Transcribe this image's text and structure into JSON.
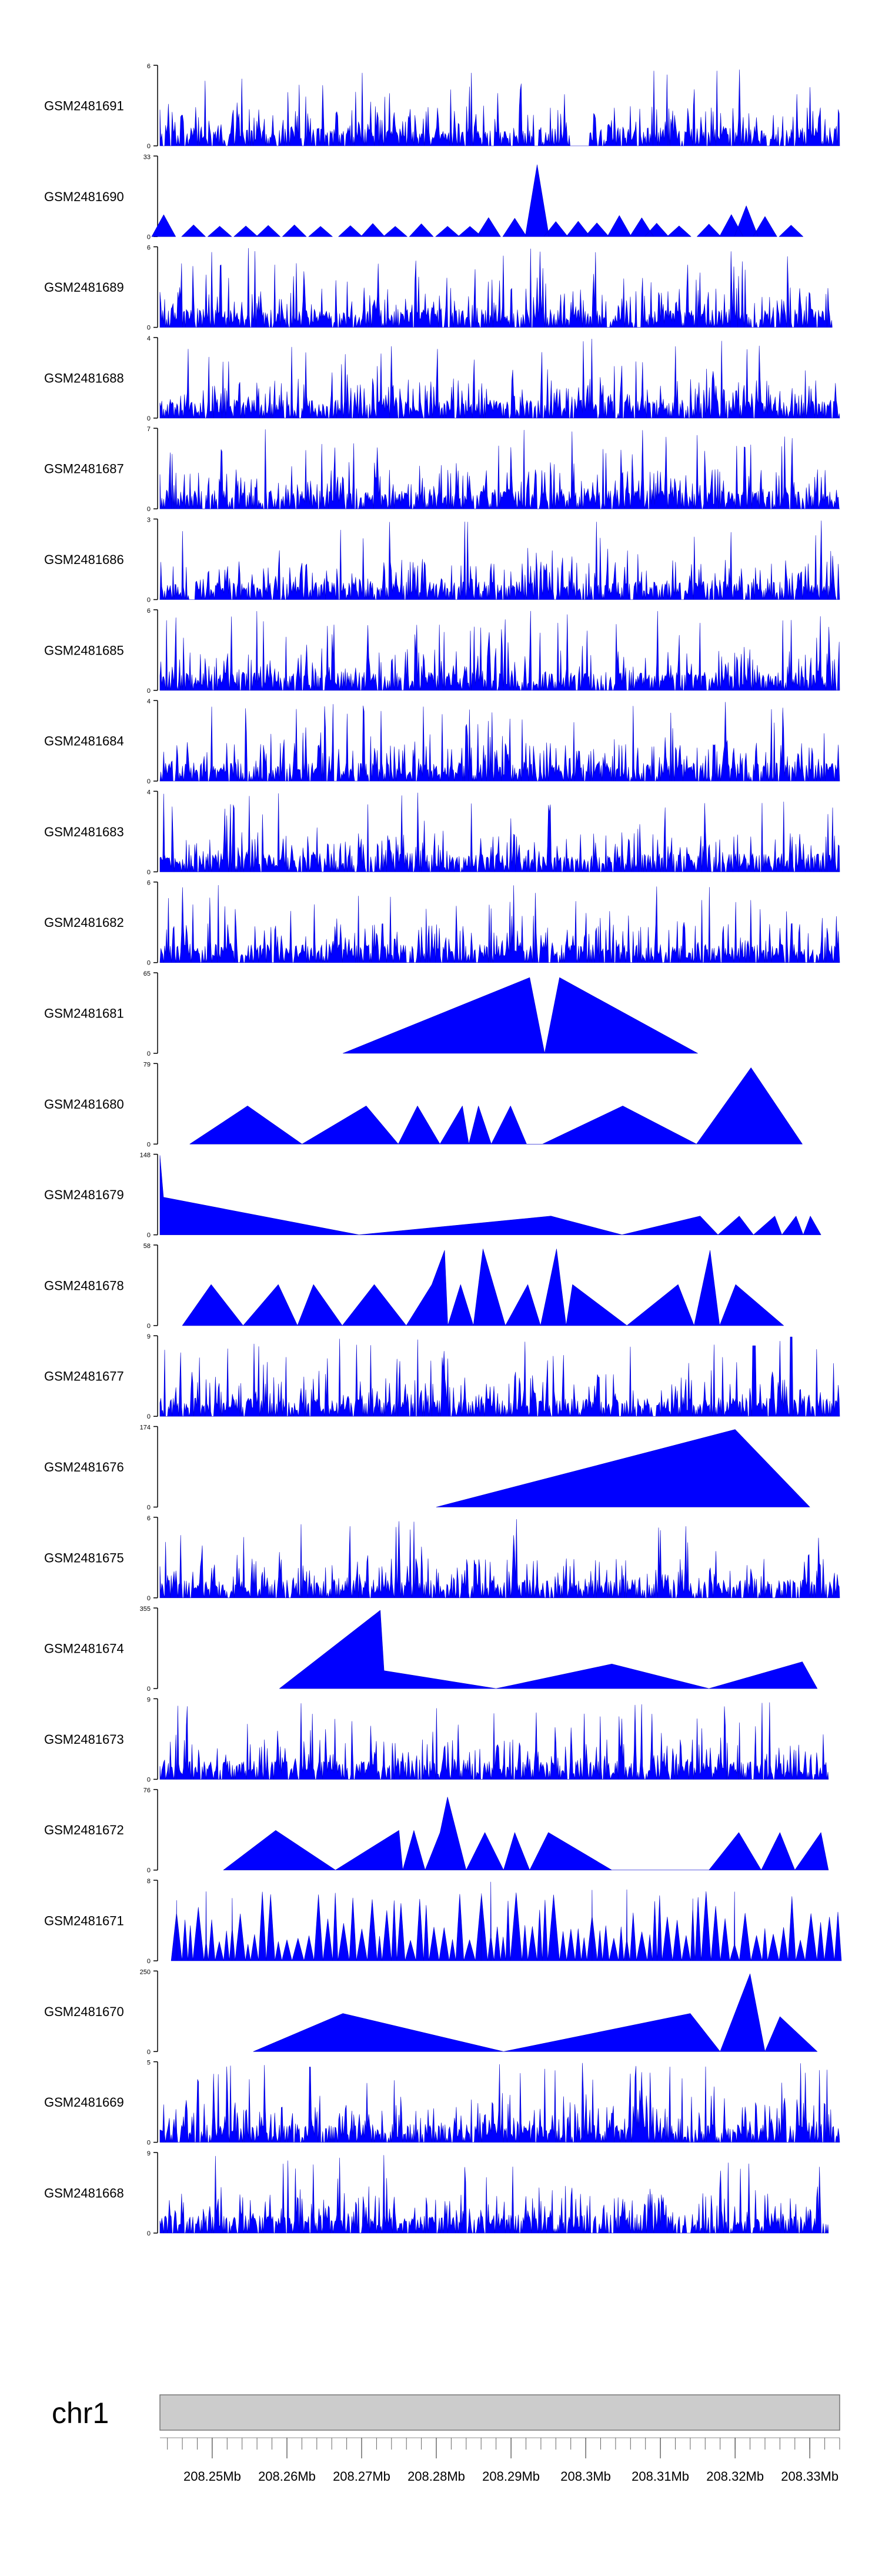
{
  "chart_data": {
    "type": "area",
    "title": "",
    "xlabel": "",
    "ylabel": "",
    "fill_color": "#0000ff",
    "stroke_color": "#0000cc",
    "axis_color": "#000000",
    "x_range_mb": [
      208.243,
      208.334
    ],
    "tracks": [
      {
        "name": "GSM2481691",
        "ymax": 6,
        "pattern": "dense",
        "seed": 11,
        "xmin": 208.243,
        "xmax": 208.334,
        "gaps": [
          [
            208.2978,
            208.3005
          ]
        ]
      },
      {
        "name": "GSM2481690",
        "ymax": 33,
        "pattern": "sparse",
        "seed": 12,
        "peaks": [
          [
            208.2435,
            10
          ],
          [
            208.2475,
            5
          ],
          [
            208.251,
            5
          ],
          [
            208.2545,
            5
          ],
          [
            208.2575,
            5
          ],
          [
            208.261,
            5
          ],
          [
            208.2645,
            5
          ],
          [
            208.2685,
            5
          ],
          [
            208.2715,
            6
          ],
          [
            208.2745,
            5
          ],
          [
            208.278,
            6
          ],
          [
            208.2815,
            5
          ],
          [
            208.2845,
            5
          ],
          [
            208.287,
            9
          ],
          [
            208.2905,
            8
          ],
          [
            208.2935,
            33
          ],
          [
            208.296,
            7
          ],
          [
            208.299,
            7
          ],
          [
            208.3015,
            6
          ],
          [
            208.3045,
            10
          ],
          [
            208.3075,
            9
          ],
          [
            208.3095,
            6
          ],
          [
            208.3125,
            5
          ],
          [
            208.3165,
            6
          ],
          [
            208.3195,
            10
          ],
          [
            208.3215,
            13
          ],
          [
            208.324,
            9
          ],
          [
            208.3275,
            5
          ]
        ],
        "pw": 0.0016,
        "xmax": 208.3305
      },
      {
        "name": "GSM2481689",
        "ymax": 6,
        "pattern": "dense",
        "seed": 13,
        "xmin": 208.243,
        "xmax": 208.333,
        "gaps": []
      },
      {
        "name": "GSM2481688",
        "ymax": 4,
        "pattern": "dense",
        "seed": 14,
        "xmin": 208.243,
        "xmax": 208.334,
        "gaps": []
      },
      {
        "name": "GSM2481687",
        "ymax": 7,
        "pattern": "dense",
        "seed": 15,
        "xmin": 208.243,
        "xmax": 208.334,
        "gaps": []
      },
      {
        "name": "GSM2481686",
        "ymax": 3,
        "pattern": "dense",
        "seed": 16,
        "xmin": 208.243,
        "xmax": 208.334,
        "gaps": []
      },
      {
        "name": "GSM2481685",
        "ymax": 6,
        "pattern": "dense",
        "seed": 17,
        "xmin": 208.243,
        "xmax": 208.334,
        "gaps": []
      },
      {
        "name": "GSM2481684",
        "ymax": 4,
        "pattern": "dense",
        "seed": 18,
        "xmin": 208.243,
        "xmax": 208.334,
        "gaps": []
      },
      {
        "name": "GSM2481683",
        "ymax": 4,
        "pattern": "dense",
        "seed": 19,
        "xmin": 208.243,
        "xmax": 208.334,
        "gaps": []
      },
      {
        "name": "GSM2481682",
        "ymax": 6,
        "pattern": "dense",
        "seed": 20,
        "xmin": 208.243,
        "xmax": 208.334,
        "gaps": []
      },
      {
        "name": "GSM2481681",
        "ymax": 65,
        "pattern": "segments",
        "points": [
          [
            208.2675,
            0
          ],
          [
            208.2925,
            62
          ],
          [
            208.2945,
            0
          ],
          [
            208.2965,
            62
          ],
          [
            208.315,
            0
          ]
        ]
      },
      {
        "name": "GSM2481680",
        "ymax": 79,
        "pattern": "segments",
        "points": [
          [
            208.2475,
            0
          ],
          [
            208.2565,
            38
          ],
          [
            208.265,
            0
          ],
          [
            208.275,
            38
          ],
          [
            208.28,
            0
          ],
          [
            208.283,
            38
          ],
          [
            208.2865,
            0
          ],
          [
            208.29,
            38
          ],
          [
            208.291,
            0
          ],
          [
            208.2925,
            38
          ],
          [
            208.2945,
            0
          ],
          [
            208.2975,
            38
          ],
          [
            208.3,
            0
          ],
          [
            208.3025,
            0
          ],
          [
            208.315,
            38
          ],
          [
            208.3265,
            0
          ],
          [
            208.335,
            76
          ],
          [
            208.343,
            0
          ]
        ],
        "scale": [
          208.2475,
          208.343,
          208.247,
          208.329
        ]
      },
      {
        "name": "GSM2481679",
        "ymax": 148,
        "pattern": "segments",
        "points": [
          [
            208.243,
            0
          ],
          [
            208.243,
            148
          ],
          [
            208.2435,
            70
          ],
          [
            208.271,
            0
          ],
          [
            208.298,
            35
          ],
          [
            208.308,
            0
          ],
          [
            208.319,
            35
          ],
          [
            208.3215,
            0
          ],
          [
            208.3245,
            35
          ],
          [
            208.3265,
            0
          ],
          [
            208.3295,
            35
          ],
          [
            208.3305,
            0
          ],
          [
            208.3325,
            35
          ],
          [
            208.3335,
            0
          ],
          [
            208.3345,
            35
          ],
          [
            208.336,
            0
          ]
        ],
        "scale": [
          208.243,
          208.336,
          208.243,
          208.3315
        ]
      },
      {
        "name": "GSM2481678",
        "ymax": 58,
        "pattern": "segments",
        "points": [
          [
            208.246,
            0
          ],
          [
            208.2505,
            30
          ],
          [
            208.2555,
            0
          ],
          [
            208.261,
            30
          ],
          [
            208.264,
            0
          ],
          [
            208.2665,
            30
          ],
          [
            208.271,
            0
          ],
          [
            208.276,
            30
          ],
          [
            208.281,
            0
          ],
          [
            208.285,
            30
          ],
          [
            208.287,
            55
          ],
          [
            208.2875,
            0
          ],
          [
            208.2895,
            30
          ],
          [
            208.2915,
            0
          ],
          [
            208.293,
            56
          ],
          [
            208.2965,
            0
          ],
          [
            208.3,
            30
          ],
          [
            208.302,
            0
          ],
          [
            208.3045,
            56
          ],
          [
            208.306,
            0
          ],
          [
            208.307,
            30
          ],
          [
            208.3155,
            0
          ],
          [
            208.3235,
            30
          ],
          [
            208.326,
            0
          ],
          [
            208.3285,
            55
          ],
          [
            208.33,
            0
          ],
          [
            208.3325,
            30
          ],
          [
            208.34,
            0
          ]
        ],
        "scale": [
          208.246,
          208.34,
          208.246,
          208.3265
        ]
      },
      {
        "name": "GSM2481677",
        "ymax": 9,
        "pattern": "dense",
        "seed": 21,
        "xmin": 208.243,
        "xmax": 208.334,
        "gaps": [],
        "bumps": [
          [
            208.3225,
            8
          ],
          [
            208.3275,
            9
          ]
        ]
      },
      {
        "name": "GSM2481676",
        "ymax": 174,
        "pattern": "segments",
        "points": [
          [
            208.28,
            0
          ],
          [
            208.32,
            170
          ],
          [
            208.33,
            0
          ]
        ]
      },
      {
        "name": "GSM2481675",
        "ymax": 6,
        "pattern": "dense",
        "seed": 22,
        "xmin": 208.243,
        "xmax": 208.334,
        "gaps": []
      },
      {
        "name": "GSM2481674",
        "ymax": 355,
        "pattern": "segments",
        "points": [
          [
            208.259,
            0
          ],
          [
            208.2725,
            350
          ],
          [
            208.273,
            80
          ],
          [
            208.288,
            0
          ],
          [
            208.3035,
            110
          ],
          [
            208.3165,
            0
          ],
          [
            208.329,
            120
          ],
          [
            208.331,
            0
          ]
        ]
      },
      {
        "name": "GSM2481673",
        "ymax": 9,
        "pattern": "dense",
        "seed": 23,
        "xmin": 208.243,
        "xmax": 208.3325,
        "gaps": []
      },
      {
        "name": "GSM2481672",
        "ymax": 76,
        "pattern": "segments",
        "points": [
          [
            208.2515,
            0
          ],
          [
            208.2585,
            38
          ],
          [
            208.2665,
            0
          ],
          [
            208.275,
            38
          ],
          [
            208.2755,
            0
          ],
          [
            208.277,
            38
          ],
          [
            208.2785,
            0
          ],
          [
            208.2805,
            36
          ],
          [
            208.2815,
            70
          ],
          [
            208.284,
            0
          ],
          [
            208.2865,
            36
          ],
          [
            208.289,
            0
          ],
          [
            208.2905,
            36
          ],
          [
            208.2925,
            0
          ],
          [
            208.295,
            36
          ],
          [
            208.3035,
            0
          ],
          [
            208.3165,
            0
          ],
          [
            208.3205,
            36
          ],
          [
            208.3235,
            0
          ],
          [
            208.326,
            36
          ],
          [
            208.328,
            0
          ],
          [
            208.3315,
            36
          ],
          [
            208.3325,
            0
          ]
        ],
        "scale": [
          208.2515,
          208.3325,
          208.2515,
          208.3325
        ]
      },
      {
        "name": "GSM2481671",
        "ymax": 8,
        "pattern": "triangles",
        "seed": 24,
        "xmin": 208.2445,
        "xmax": 208.334
      },
      {
        "name": "GSM2481670",
        "ymax": 250,
        "pattern": "segments",
        "points": [
          [
            208.2555,
            0
          ],
          [
            208.2675,
            120
          ],
          [
            208.289,
            0
          ],
          [
            208.314,
            120
          ],
          [
            208.318,
            0
          ],
          [
            208.322,
            245
          ],
          [
            208.324,
            0
          ],
          [
            208.326,
            110
          ],
          [
            208.331,
            0
          ]
        ],
        "scale": [
          208.2555,
          208.331,
          208.2555,
          208.331
        ]
      },
      {
        "name": "GSM2481669",
        "ymax": 5,
        "pattern": "dense",
        "seed": 25,
        "xmin": 208.243,
        "xmax": 208.334,
        "gaps": []
      },
      {
        "name": "GSM2481668",
        "ymax": 9,
        "pattern": "dense",
        "seed": 26,
        "xmin": 208.243,
        "xmax": 208.3325,
        "gaps": []
      }
    ],
    "ideogram": {
      "label": "chr1",
      "fill": "#cccccc",
      "edge": "#777777"
    },
    "x_ticks": [
      {
        "value": 208.25,
        "label": "208.25Mb"
      },
      {
        "value": 208.26,
        "label": "208.26Mb"
      },
      {
        "value": 208.27,
        "label": "208.27Mb"
      },
      {
        "value": 208.28,
        "label": "208.28Mb"
      },
      {
        "value": 208.29,
        "label": "208.29Mb"
      },
      {
        "value": 208.3,
        "label": "208.3Mb"
      },
      {
        "value": 208.31,
        "label": "208.31Mb"
      },
      {
        "value": 208.32,
        "label": "208.32Mb"
      },
      {
        "value": 208.33,
        "label": "208.33Mb"
      }
    ],
    "minor_tick_step_mb": 0.002
  }
}
